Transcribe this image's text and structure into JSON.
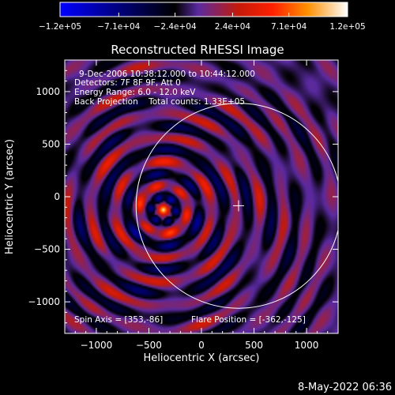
{
  "chart_data": {
    "type": "heatmap",
    "title": "Reconstructed RHESSI Image",
    "xlabel": "Heliocentric X (arcsec)",
    "ylabel": "Heliocentric Y (arcsec)",
    "xlim": [
      -1300,
      1300
    ],
    "ylim": [
      -1300,
      1300
    ],
    "x_ticks": [
      -1000,
      -500,
      0,
      500,
      1000
    ],
    "x_tick_labels": [
      "−1000",
      "−500",
      "0",
      "500",
      "1000"
    ],
    "y_ticks": [
      -1000,
      -500,
      0,
      500,
      1000
    ],
    "y_tick_labels": [
      "−1000",
      "−500",
      "0",
      "500",
      "1000"
    ],
    "colorbar": {
      "range": [
        -120000,
        120000
      ],
      "ticks": [
        -120000,
        -71000,
        -24000,
        24000,
        71000,
        120000
      ],
      "tick_labels": [
        "−1.2e+05",
        "−7.1e+04",
        "−2.4e+04",
        "2.4e+04",
        "7.1e+04",
        "1.2e+05"
      ],
      "colors": [
        "#0000ff",
        "#000000",
        "#5a2aa0",
        "#c41a0a",
        "#ff2000",
        "#ff9000",
        "#ffffff"
      ]
    },
    "source": {
      "x": -362,
      "y": -125
    },
    "sun_center": {
      "x": 353,
      "y": -86
    },
    "solar_radius_arcsec": 975,
    "annotations": [
      "9-Dec-2006 10:38:12.000 to 10:44:12.000",
      "Detectors: 7F 8F 9F, Att 0",
      "Energy Range: 6.0 - 12.0 keV",
      "Back Projection    Total counts: 1.33E+05"
    ],
    "footer_left": "Spin Axis = [353,-86]",
    "footer_right": "Flare Position = [-362,-125]",
    "timestamp": "8-May-2022 06:36",
    "grid": false
  }
}
